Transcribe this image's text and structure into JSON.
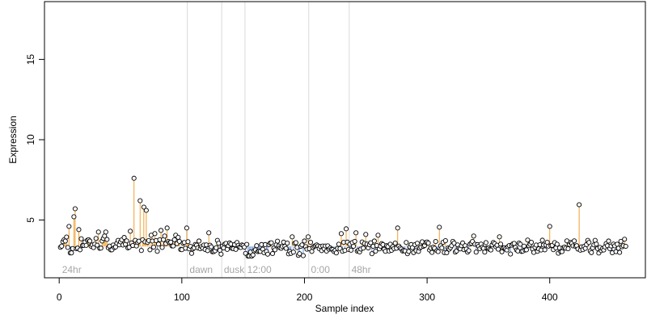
{
  "chart_data": {
    "type": "scatter",
    "title": "",
    "xlabel": "Sample index",
    "ylabel": "Expression",
    "xlim": [
      -12,
      478
    ],
    "ylim": [
      1.4,
      18.6
    ],
    "x_ticks": [
      0,
      100,
      200,
      300,
      400
    ],
    "y_ticks": [
      5,
      10,
      15
    ],
    "grid": false,
    "baseline": 3.35,
    "colors": {
      "point_stroke": "#000000",
      "point_fill": "#ffffff",
      "above_line": "#f0a030",
      "below_line": "#6e93d6",
      "divider": "#d9d9d9",
      "segment_label": "#a6a6a6"
    },
    "segments": [
      {
        "label": "24hr",
        "start": 1
      },
      {
        "label": "dawn",
        "start": 105
      },
      {
        "label": "dusk",
        "start": 133
      },
      {
        "label": "12:00",
        "start": 152
      },
      {
        "label": "0:00",
        "start": 204
      },
      {
        "label": "48hr",
        "start": 237
      }
    ],
    "highlights": [
      {
        "x": 61,
        "y": 7.6
      },
      {
        "x": 66,
        "y": 6.2
      },
      {
        "x": 69,
        "y": 5.8
      },
      {
        "x": 71,
        "y": 5.6
      },
      {
        "x": 13,
        "y": 5.7
      },
      {
        "x": 12,
        "y": 5.2
      },
      {
        "x": 424,
        "y": 5.95
      },
      {
        "x": 400,
        "y": 4.6
      },
      {
        "x": 310,
        "y": 4.55
      },
      {
        "x": 276,
        "y": 4.5
      },
      {
        "x": 104,
        "y": 4.5
      },
      {
        "x": 8,
        "y": 4.6
      },
      {
        "x": 16,
        "y": 4.4
      },
      {
        "x": 88,
        "y": 4.5
      },
      {
        "x": 83,
        "y": 4.35
      },
      {
        "x": 234,
        "y": 4.45
      },
      {
        "x": 242,
        "y": 4.2
      },
      {
        "x": 122,
        "y": 4.2
      },
      {
        "x": 58,
        "y": 4.3
      },
      {
        "x": 32,
        "y": 4.25
      },
      {
        "x": 38,
        "y": 4.25
      },
      {
        "x": 78,
        "y": 4.15
      },
      {
        "x": 230,
        "y": 4.15
      },
      {
        "x": 250,
        "y": 4.1
      },
      {
        "x": 260,
        "y": 4.05
      },
      {
        "x": 359,
        "y": 3.95
      },
      {
        "x": 338,
        "y": 4.0
      },
      {
        "x": 190,
        "y": 3.95
      },
      {
        "x": 203,
        "y": 3.95
      },
      {
        "x": 414,
        "y": 3.7
      },
      {
        "x": 461,
        "y": 3.8
      },
      {
        "x": 9,
        "y": 2.95
      },
      {
        "x": 10,
        "y": 2.95
      },
      {
        "x": 154,
        "y": 2.75
      },
      {
        "x": 155,
        "y": 2.75
      },
      {
        "x": 157,
        "y": 2.75
      },
      {
        "x": 196,
        "y": 2.9
      }
    ]
  }
}
